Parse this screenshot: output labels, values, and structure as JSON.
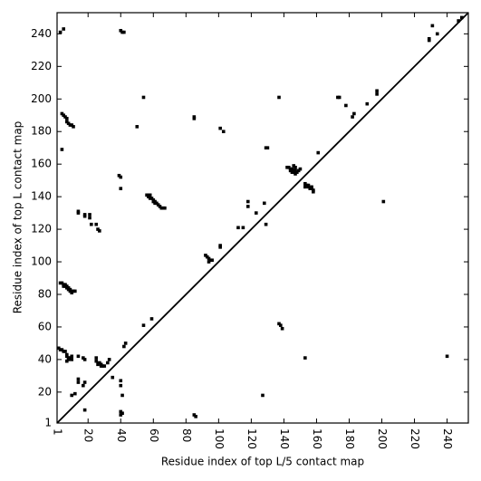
{
  "chart_data": {
    "type": "scatter",
    "xlabel": "Residue index of top L/5 contact map",
    "ylabel": "Residue index of top L contact map",
    "color": "#000000",
    "xlim": [
      1,
      253
    ],
    "ylim": [
      1,
      253
    ],
    "xticks": [
      1,
      20,
      40,
      60,
      80,
      100,
      120,
      140,
      160,
      180,
      200,
      220,
      240
    ],
    "yticks": [
      1,
      20,
      40,
      60,
      80,
      100,
      120,
      140,
      160,
      180,
      200,
      220,
      240
    ],
    "x": [
      3,
      5,
      40,
      41,
      42,
      4,
      5,
      6,
      7,
      7,
      8,
      9,
      10,
      11,
      4,
      39,
      40,
      40,
      50,
      54,
      85,
      85,
      101,
      103,
      137,
      129,
      130,
      161,
      173,
      174,
      178,
      182,
      183,
      191,
      197,
      197,
      229,
      229,
      231,
      234,
      247,
      249,
      56,
      57,
      58,
      57,
      58,
      58,
      59,
      60,
      60,
      61,
      61,
      62,
      63,
      64,
      65,
      66,
      67,
      14,
      14,
      18,
      18,
      21,
      21,
      22,
      25,
      26,
      27,
      43,
      42,
      118,
      118,
      123,
      128,
      129,
      112,
      115,
      101,
      101,
      92,
      93,
      94,
      95,
      96,
      94,
      54,
      59,
      3,
      4,
      5,
      6,
      6,
      7,
      8,
      9,
      10,
      11,
      12,
      5,
      7,
      8,
      9,
      10,
      2,
      3,
      4,
      5,
      6,
      7,
      7,
      8,
      9,
      10,
      8,
      7,
      10,
      14,
      17,
      18,
      25,
      25,
      27,
      28,
      29,
      26,
      28,
      30,
      33,
      32,
      14,
      14,
      18,
      17,
      12,
      10,
      18,
      35,
      40,
      40,
      41,
      40,
      41,
      40,
      85,
      86,
      127,
      137,
      138,
      139,
      153,
      142,
      143,
      144,
      145,
      146,
      147,
      148,
      146,
      147,
      144,
      145,
      149,
      150,
      147,
      146,
      153,
      154,
      155,
      156,
      157,
      158,
      158,
      153,
      155,
      157,
      201,
      240
    ],
    "y": [
      241,
      243,
      242,
      241,
      241,
      191,
      190,
      189,
      188,
      186,
      185,
      184,
      184,
      183,
      169,
      153,
      152,
      145,
      183,
      201,
      188,
      189,
      182,
      180,
      201,
      170,
      170,
      167,
      201,
      201,
      196,
      189,
      191,
      197,
      203,
      205,
      236,
      237,
      245,
      240,
      248,
      250,
      141,
      141,
      141,
      140,
      140,
      139,
      139,
      138,
      137,
      137,
      136,
      136,
      135,
      134,
      133,
      133,
      133,
      131,
      130,
      129,
      128,
      129,
      127,
      123,
      123,
      120,
      119,
      50,
      48,
      137,
      134,
      130,
      136,
      123,
      121,
      121,
      110,
      109,
      104,
      103,
      102,
      101,
      101,
      100,
      61,
      65,
      87,
      87,
      86,
      86,
      85,
      84,
      84,
      83,
      82,
      82,
      82,
      85,
      85,
      83,
      82,
      81,
      47,
      46,
      46,
      45,
      45,
      43,
      42,
      41,
      41,
      42,
      40,
      39,
      40,
      42,
      41,
      40,
      41,
      39,
      38,
      37,
      36,
      37,
      36,
      36,
      40,
      38,
      28,
      26,
      26,
      24,
      19,
      18,
      9,
      29,
      27,
      24,
      18,
      8,
      7,
      6,
      6,
      5,
      18,
      62,
      61,
      59,
      41,
      158,
      158,
      157,
      157,
      156,
      156,
      155,
      155,
      154,
      156,
      155,
      156,
      157,
      158,
      159,
      148,
      147,
      146,
      145,
      145,
      144,
      143,
      146,
      147,
      146,
      137,
      42
    ]
  }
}
